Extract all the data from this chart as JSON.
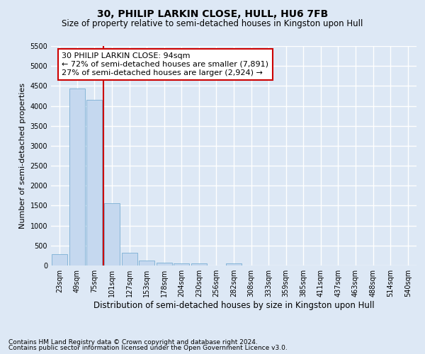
{
  "title": "30, PHILIP LARKIN CLOSE, HULL, HU6 7FB",
  "subtitle": "Size of property relative to semi-detached houses in Kingston upon Hull",
  "xlabel": "Distribution of semi-detached houses by size in Kingston upon Hull",
  "ylabel": "Number of semi-detached properties",
  "footer1": "Contains HM Land Registry data © Crown copyright and database right 2024.",
  "footer2": "Contains public sector information licensed under the Open Government Licence v3.0.",
  "bar_labels": [
    "23sqm",
    "49sqm",
    "75sqm",
    "101sqm",
    "127sqm",
    "153sqm",
    "178sqm",
    "204sqm",
    "230sqm",
    "256sqm",
    "282sqm",
    "308sqm",
    "333sqm",
    "359sqm",
    "385sqm",
    "411sqm",
    "437sqm",
    "463sqm",
    "488sqm",
    "514sqm",
    "540sqm"
  ],
  "bar_values": [
    280,
    4430,
    4150,
    1560,
    320,
    130,
    75,
    55,
    55,
    0,
    55,
    0,
    0,
    0,
    0,
    0,
    0,
    0,
    0,
    0,
    0
  ],
  "bar_color": "#c5d8ef",
  "bar_edge_color": "#7aafd4",
  "ylim": [
    0,
    5500
  ],
  "yticks": [
    0,
    500,
    1000,
    1500,
    2000,
    2500,
    3000,
    3500,
    4000,
    4500,
    5000,
    5500
  ],
  "vline_x": 2.5,
  "vline_color": "#cc0000",
  "annotation_text": "30 PHILIP LARKIN CLOSE: 94sqm\n← 72% of semi-detached houses are smaller (7,891)\n27% of semi-detached houses are larger (2,924) →",
  "annotation_box_color": "#ffffff",
  "annotation_box_edgecolor": "#cc0000",
  "background_color": "#dde8f5",
  "plot_bg_color": "#dde8f5",
  "grid_color": "#ffffff",
  "title_fontsize": 10,
  "subtitle_fontsize": 8.5,
  "xlabel_fontsize": 8.5,
  "ylabel_fontsize": 8,
  "tick_fontsize": 7,
  "annotation_fontsize": 8,
  "footer_fontsize": 6.5
}
